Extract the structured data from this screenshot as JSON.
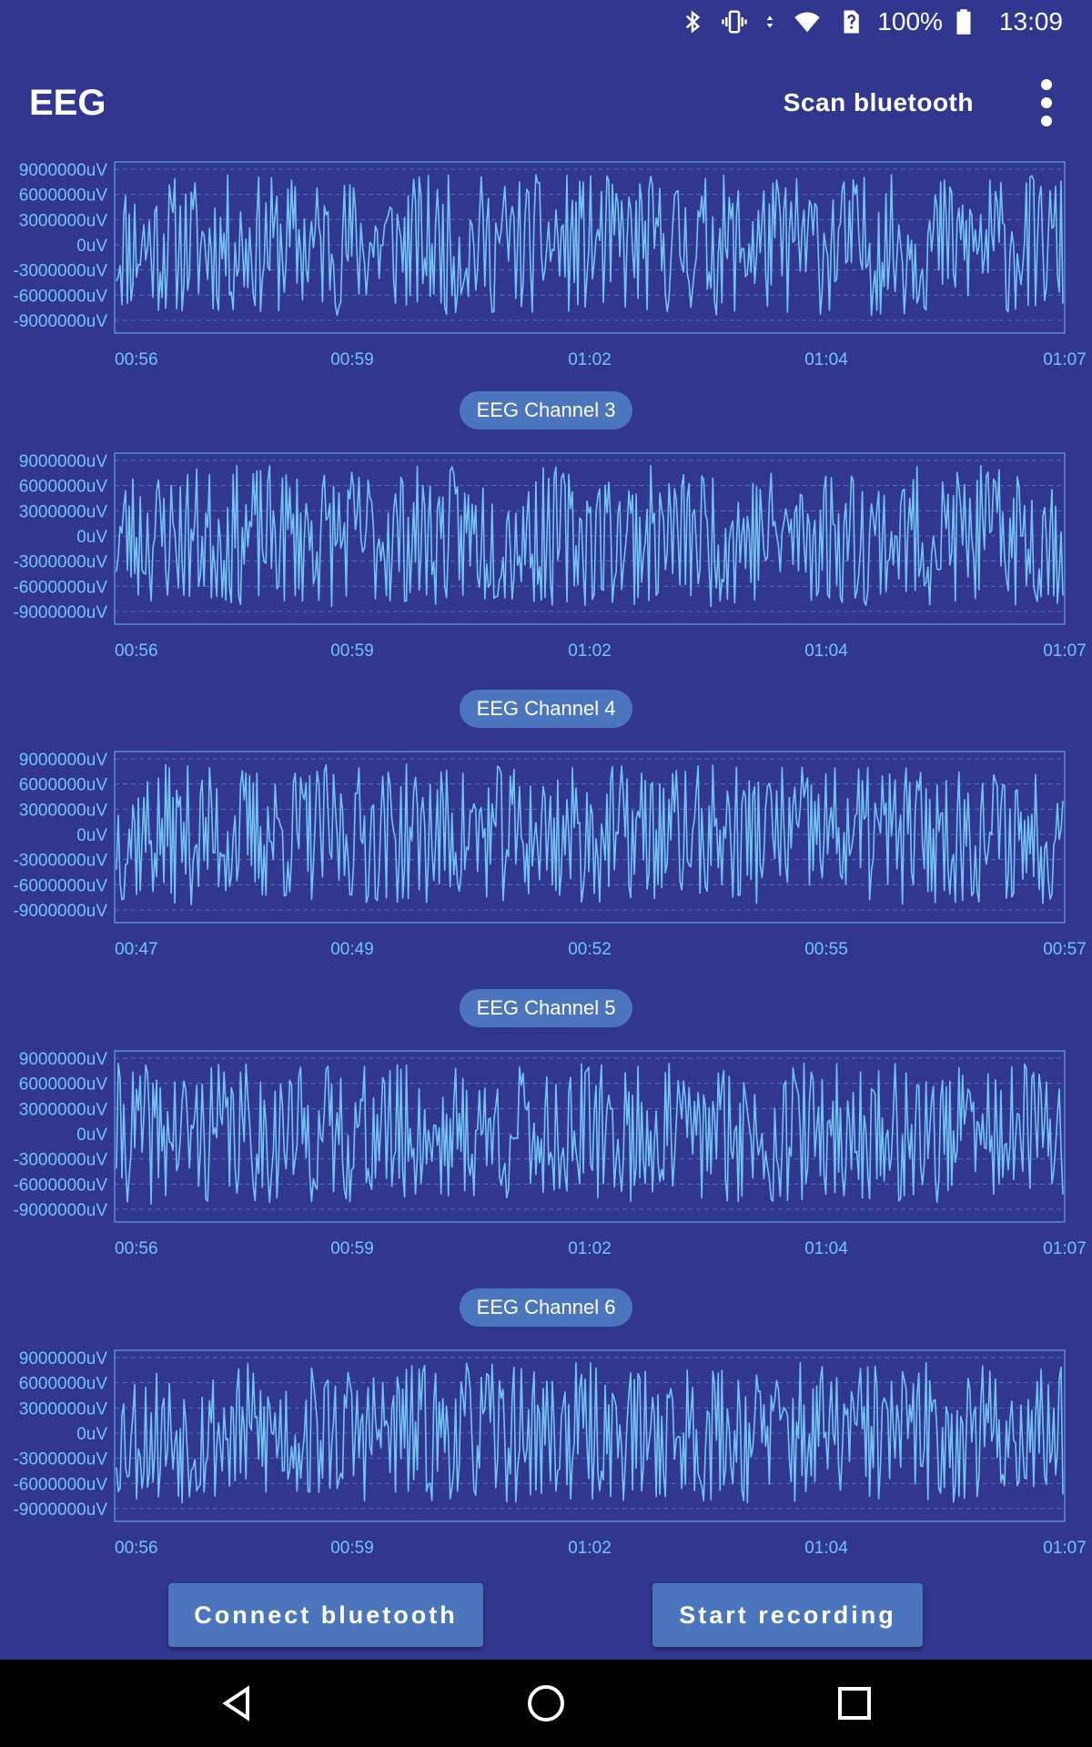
{
  "status_bar": {
    "battery_percent": "100%",
    "time": "13:09",
    "icons": [
      "bluetooth-icon",
      "vibrate-icon",
      "data-arrows-icon",
      "wifi-icon",
      "sim-unknown-icon",
      "battery-icon"
    ]
  },
  "app_bar": {
    "title": "EEG",
    "scan_label": "Scan bluetooth",
    "overflow_icon": "more-vert-icon"
  },
  "colors": {
    "background": "#31378f",
    "trace": "#74c3f6",
    "frame": "#5a8ad6",
    "pill": "#4b76bd",
    "button": "#4b76bd"
  },
  "charts": [
    {
      "label": "",
      "y_ticks": [
        "9000000uV",
        "6000000uV",
        "3000000uV",
        "0uV",
        "-3000000uV",
        "-6000000uV",
        "-9000000uV"
      ],
      "x_ticks": [
        "00:56",
        "00:59",
        "01:02",
        "01:04",
        "01:07"
      ]
    },
    {
      "label": "EEG Channel 3",
      "y_ticks": [
        "9000000uV",
        "6000000uV",
        "3000000uV",
        "0uV",
        "-3000000uV",
        "-6000000uV",
        "-9000000uV"
      ],
      "x_ticks": [
        "00:56",
        "00:59",
        "01:02",
        "01:04",
        "01:07"
      ]
    },
    {
      "label": "EEG Channel 4",
      "y_ticks": [
        "9000000uV",
        "6000000uV",
        "3000000uV",
        "0uV",
        "-3000000uV",
        "-6000000uV",
        "-9000000uV"
      ],
      "x_ticks": [
        "00:47",
        "00:49",
        "00:52",
        "00:55",
        "00:57"
      ]
    },
    {
      "label": "EEG Channel 5",
      "y_ticks": [
        "9000000uV",
        "6000000uV",
        "3000000uV",
        "0uV",
        "-3000000uV",
        "-6000000uV",
        "-9000000uV"
      ],
      "x_ticks": [
        "00:56",
        "00:59",
        "01:02",
        "01:04",
        "01:07"
      ]
    },
    {
      "label": "EEG Channel 6",
      "y_ticks": [
        "9000000uV",
        "6000000uV",
        "3000000uV",
        "0uV",
        "-3000000uV",
        "-6000000uV",
        "-9000000uV"
      ],
      "x_ticks": [
        "00:56",
        "00:59",
        "01:02",
        "01:04",
        "01:07"
      ]
    }
  ],
  "chart_data": [
    {
      "type": "line",
      "y_unit": "uV",
      "ylim": [
        -9000000,
        9000000
      ],
      "x_start": "00:56",
      "x_end": "01:07",
      "grid": true,
      "samples": 520,
      "seed": 11,
      "series": []
    },
    {
      "type": "line",
      "title": "EEG Channel 3",
      "y_unit": "uV",
      "ylim": [
        -9000000,
        9000000
      ],
      "x_start": "00:56",
      "x_end": "01:07",
      "grid": true,
      "samples": 520,
      "seed": 23,
      "series": []
    },
    {
      "type": "line",
      "title": "EEG Channel 4",
      "y_unit": "uV",
      "ylim": [
        -9000000,
        9000000
      ],
      "x_start": "00:47",
      "x_end": "00:57",
      "grid": true,
      "samples": 520,
      "seed": 37,
      "series": []
    },
    {
      "type": "line",
      "title": "EEG Channel 5",
      "y_unit": "uV",
      "ylim": [
        -9000000,
        9000000
      ],
      "x_start": "00:56",
      "x_end": "01:07",
      "grid": true,
      "samples": 520,
      "seed": 41,
      "series": []
    },
    {
      "type": "line",
      "title": "EEG Channel 6",
      "y_unit": "uV",
      "ylim": [
        -9000000,
        9000000
      ],
      "x_start": "00:56",
      "x_end": "01:07",
      "grid": true,
      "samples": 520,
      "seed": 53,
      "series": []
    }
  ],
  "buttons": {
    "connect_label": "Connect bluetooth",
    "record_label": "Start recording"
  },
  "nav_bar": {
    "icons": [
      "back-icon",
      "home-icon",
      "recents-icon"
    ]
  }
}
